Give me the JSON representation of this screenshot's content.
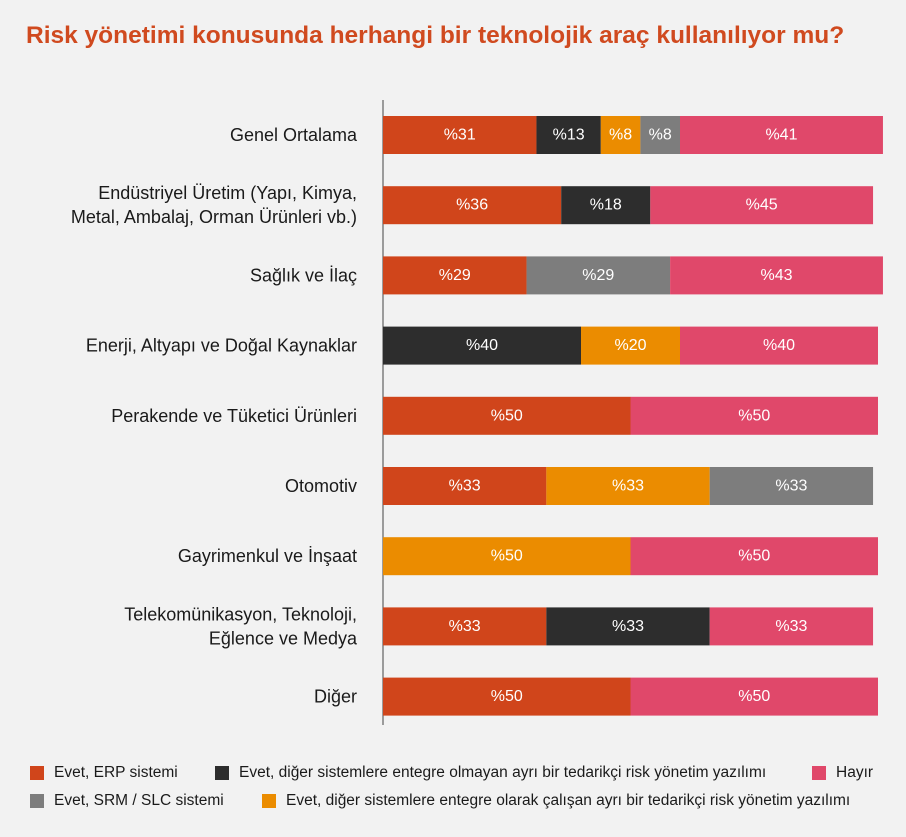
{
  "title": "Risk yönetimi konusunda herhangi bir teknolojik araç kullanılıyor mu?",
  "chart_data": {
    "type": "bar",
    "orientation": "horizontal",
    "stacked": true,
    "title": "Risk yönetimi konusunda herhangi bir teknolojik araç kullanılıyor mu?",
    "xlim": [
      0,
      100
    ],
    "value_prefix": "%",
    "categories": [
      [
        "Genel Ortalama"
      ],
      [
        "Endüstriyel Üretim (Yapı, Kimya,",
        "Metal, Ambalaj, Orman Ürünleri vb.)"
      ],
      [
        "Sağlık ve İlaç"
      ],
      [
        "Enerji, Altyapı ve Doğal Kaynaklar"
      ],
      [
        "Perakende ve Tüketici Ürünleri"
      ],
      [
        "Otomotiv"
      ],
      [
        "Gayrimenkul ve İnşaat"
      ],
      [
        "Telekomünikasyon, Teknoloji,",
        "Eğlence ve Medya"
      ],
      [
        "Diğer"
      ]
    ],
    "series": [
      {
        "name": "Evet, ERP sistemi",
        "color": "#d0451b",
        "values": [
          31,
          36,
          29,
          0,
          50,
          33,
          0,
          33,
          50
        ]
      },
      {
        "name": "Evet, diğer sistemlere entegre olmayan ayrı bir tedarikçi risk yönetim yazılımı",
        "color": "#2d2d2d",
        "values": [
          13,
          18,
          0,
          40,
          0,
          0,
          0,
          33,
          0
        ]
      },
      {
        "name": "Evet, diğer sistemlere entegre olarak çalışan ayrı bir tedarikçi risk yönetim yazılımı",
        "color": "#eb8c00",
        "values": [
          8,
          0,
          0,
          20,
          0,
          33,
          50,
          0,
          0
        ]
      },
      {
        "name": "Evet, SRM / SLC sistemi",
        "color": "#7d7d7d",
        "values": [
          8,
          0,
          29,
          0,
          0,
          33,
          0,
          0,
          0
        ]
      },
      {
        "name": "Hayır",
        "color": "#e0486a",
        "values": [
          41,
          45,
          43,
          40,
          50,
          0,
          50,
          33,
          50
        ]
      }
    ]
  },
  "legend": [
    {
      "label": "Evet, ERP sistemi",
      "color": "#d0451b"
    },
    {
      "label": "Evet, diğer sistemlere entegre olmayan ayrı bir tedarikçi risk yönetim yazılımı",
      "color": "#2d2d2d"
    },
    {
      "label": "Hayır",
      "color": "#e0486a"
    },
    {
      "label": "Evet, SRM / SLC sistemi",
      "color": "#7d7d7d"
    },
    {
      "label": "Evet, diğer sistemlere entegre olarak çalışan ayrı bir tedarikçi risk yönetim yazılımı",
      "color": "#eb8c00"
    }
  ]
}
